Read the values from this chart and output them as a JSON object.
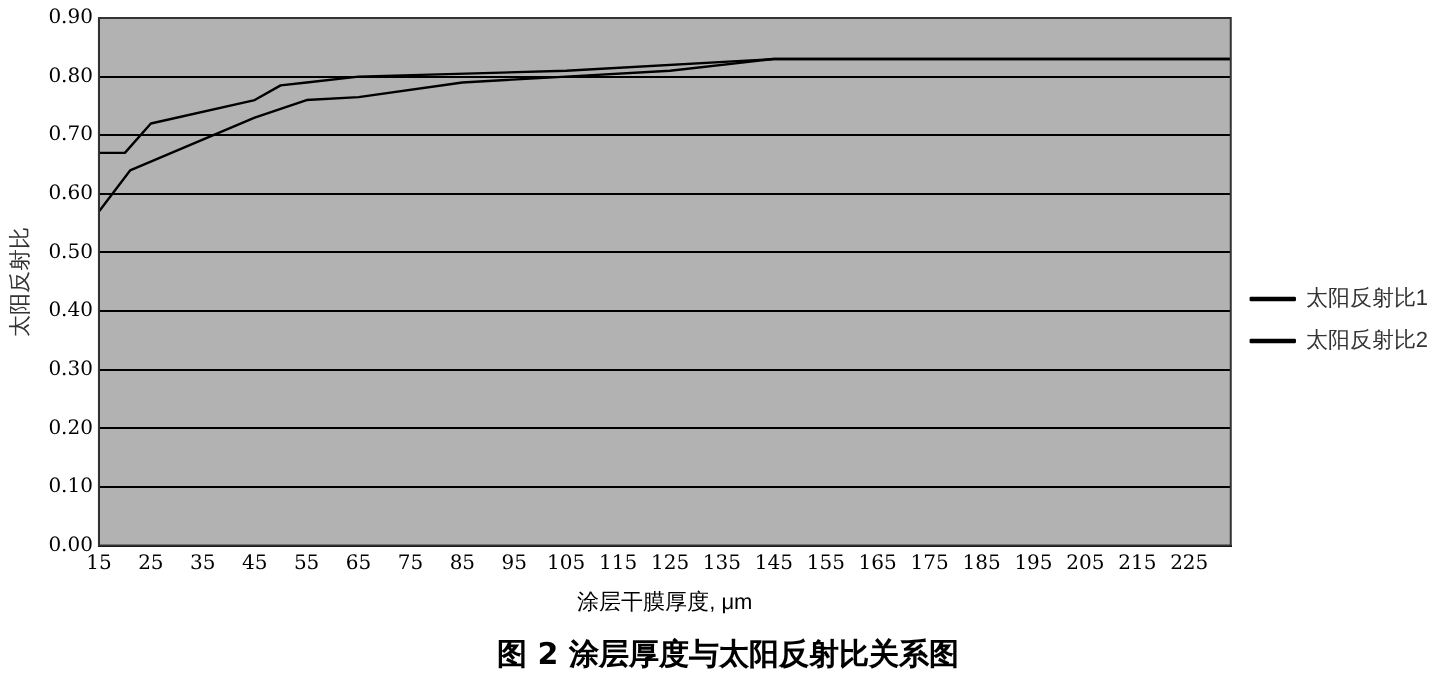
{
  "chart_data": {
    "type": "line",
    "title": "图 2 涂层厚度与太阳反射比关系图",
    "xlabel": "涂层干膜厚度, μm",
    "ylabel": "太阳反射比",
    "series": [
      {
        "name": "太阳反射比1",
        "color": "#000000",
        "x": [
          15,
          20,
          25,
          45,
          50,
          55,
          65,
          105,
          145,
          233
        ],
        "values": [
          0.67,
          0.67,
          0.72,
          0.76,
          0.785,
          0.79,
          0.8,
          0.81,
          0.83,
          0.83
        ]
      },
      {
        "name": "太阳反射比2",
        "color": "#000000",
        "x": [
          15,
          21,
          45,
          55,
          65,
          85,
          105,
          125,
          145,
          233
        ],
        "values": [
          0.57,
          0.64,
          0.73,
          0.76,
          0.765,
          0.79,
          0.8,
          0.81,
          0.83,
          0.83
        ]
      }
    ],
    "xlim": [
      15,
      233
    ],
    "xticks": [
      15,
      25,
      35,
      45,
      55,
      65,
      75,
      85,
      95,
      105,
      115,
      125,
      135,
      145,
      155,
      165,
      175,
      185,
      195,
      205,
      215,
      225
    ],
    "ylim": [
      0,
      0.9
    ],
    "yticks": [
      {
        "value": 0,
        "label": "0.00"
      },
      {
        "value": 0.1,
        "label": "0.10"
      },
      {
        "value": 0.2,
        "label": "0.20"
      },
      {
        "value": 0.3,
        "label": "0.30"
      },
      {
        "value": 0.4,
        "label": "0.40"
      },
      {
        "value": 0.5,
        "label": "0.50"
      },
      {
        "value": 0.6,
        "label": "0.60"
      },
      {
        "value": 0.7,
        "label": "0.70"
      },
      {
        "value": 0.8,
        "label": "0.80"
      },
      {
        "value": 0.9,
        "label": "0.90"
      }
    ],
    "grid": "y",
    "legend": "right",
    "marker": "none",
    "line_style": "solid"
  }
}
